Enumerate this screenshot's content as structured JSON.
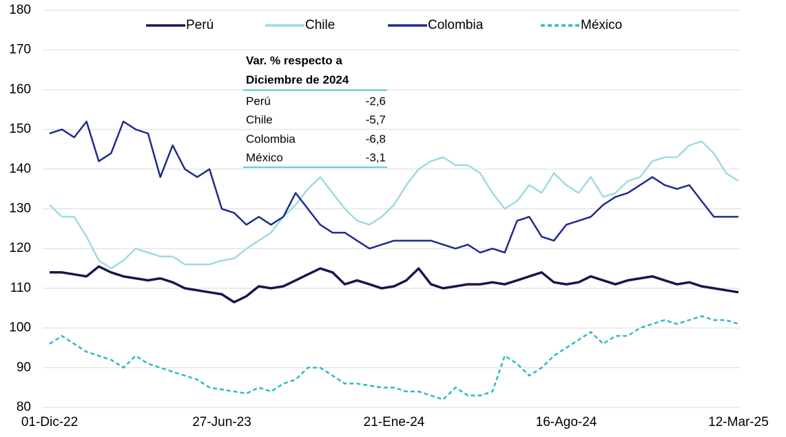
{
  "chart_data": {
    "type": "line",
    "categories": [
      "01-Dic-22",
      null,
      null,
      null,
      null,
      null,
      null,
      null,
      null,
      null,
      null,
      null,
      null,
      null,
      "27-Jun-23",
      null,
      null,
      null,
      null,
      null,
      null,
      null,
      null,
      null,
      null,
      null,
      null,
      null,
      "21-Ene-24",
      null,
      null,
      null,
      null,
      null,
      null,
      null,
      null,
      null,
      null,
      null,
      null,
      null,
      "16-Ago-24",
      null,
      null,
      null,
      null,
      null,
      null,
      null,
      null,
      null,
      null,
      null,
      null,
      null,
      "12-Mar-25"
    ],
    "series": [
      {
        "name": "Perú",
        "color": "#15174d",
        "style": "solid",
        "values": [
          114,
          114,
          113.5,
          113,
          115.5,
          114,
          113,
          112.5,
          112,
          112.5,
          111.5,
          110,
          109.5,
          109,
          108.5,
          106.5,
          108,
          110.5,
          110,
          110.5,
          112,
          113.5,
          115,
          114,
          111,
          112,
          111,
          110,
          110.5,
          112,
          115,
          111,
          110,
          110.5,
          111,
          111,
          111.5,
          111,
          112,
          113,
          114,
          111.5,
          111,
          111.5,
          113,
          112,
          111,
          112,
          112.5,
          113,
          112,
          111,
          111.5,
          110.5,
          110,
          109.5,
          109
        ]
      },
      {
        "name": "Chile",
        "color": "#9edbdf",
        "style": "solid",
        "values": [
          131,
          128,
          128,
          123,
          117,
          115,
          117,
          120,
          119,
          118,
          118,
          116,
          116,
          116,
          117,
          117.5,
          120,
          122,
          124,
          128,
          131,
          135,
          138,
          134,
          130,
          127,
          126,
          128,
          131,
          136,
          140,
          142,
          143,
          141,
          141,
          139,
          134,
          130,
          132,
          136,
          134,
          139,
          136,
          134,
          138,
          133,
          134,
          137,
          138,
          142,
          143,
          143,
          146,
          147,
          144,
          139,
          137
        ]
      },
      {
        "name": "Colombia",
        "color": "#1f2a8c",
        "style": "solid",
        "values": [
          149,
          150,
          148,
          152,
          142,
          144,
          152,
          150,
          149,
          138,
          146,
          140,
          138,
          140,
          130,
          129,
          126,
          128,
          126,
          128,
          134,
          130,
          126,
          124,
          124,
          122,
          120,
          121,
          122,
          122,
          122,
          122,
          121,
          120,
          121,
          119,
          120,
          119,
          127,
          128,
          123,
          122,
          126,
          127,
          128,
          131,
          133,
          134,
          136,
          138,
          136,
          135,
          136,
          132,
          128,
          128,
          128
        ]
      },
      {
        "name": "México",
        "color": "#2bbcc2",
        "style": "dashed",
        "values": [
          96,
          98,
          96,
          94,
          93,
          92,
          90,
          93,
          91,
          90,
          89,
          88,
          87,
          85,
          84.5,
          84,
          83.5,
          85,
          84,
          86,
          87,
          90,
          90,
          88,
          86,
          86,
          85.5,
          85,
          85,
          84,
          84,
          83,
          82,
          85,
          83,
          83,
          84,
          93,
          91,
          88,
          90,
          93,
          95,
          97,
          99,
          96,
          98,
          98,
          100,
          101,
          102,
          101,
          102,
          103,
          102,
          102,
          101
        ]
      }
    ],
    "ylim": [
      80,
      180
    ],
    "yticks": [
      80,
      90,
      100,
      110,
      120,
      130,
      140,
      150,
      160,
      170,
      180
    ],
    "grid": true
  },
  "table": {
    "header": [
      "Var. % respecto a",
      "Diciembre de 2024"
    ],
    "rows": [
      [
        "Perú",
        "-2,6"
      ],
      [
        "Chile",
        "-5,7"
      ],
      [
        "Colombia",
        "-6,8"
      ],
      [
        "México",
        "-3,1"
      ]
    ]
  }
}
